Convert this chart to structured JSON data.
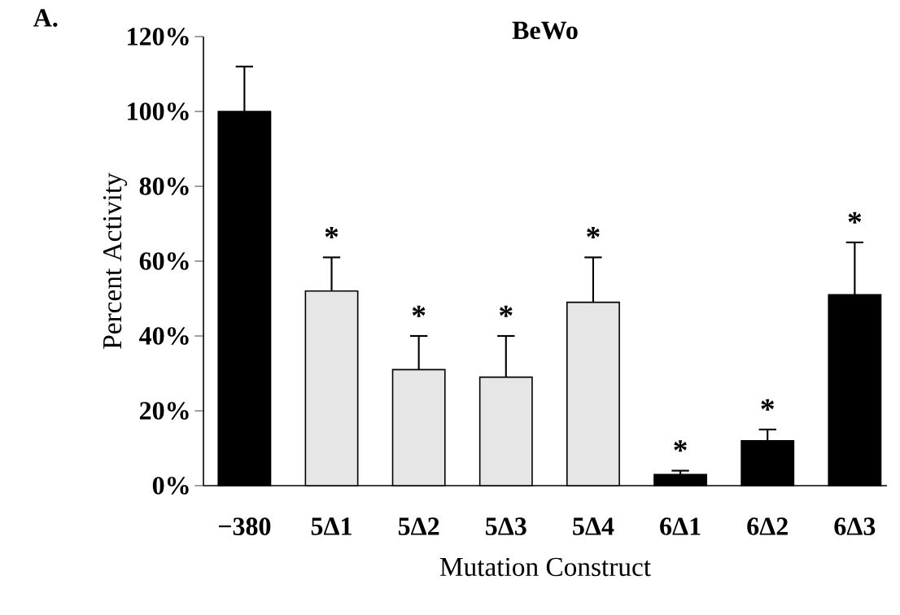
{
  "chart_data": {
    "type": "bar",
    "title": "BeWo",
    "xlabel": "Mutation Construct",
    "ylabel": "Percent Activity",
    "categories": [
      "−380",
      "5Δ1",
      "5Δ2",
      "5Δ3",
      "5Δ4",
      "6Δ1",
      "6Δ2",
      "6Δ3"
    ],
    "values": [
      100,
      52,
      31,
      29,
      49,
      3,
      12,
      51
    ],
    "errors": [
      12,
      9,
      9,
      11,
      12,
      1,
      3,
      14
    ],
    "colors": [
      "#000000",
      "#e6e6e6",
      "#e6e6e6",
      "#e6e6e6",
      "#e6e6e6",
      "#000000",
      "#000000",
      "#000000"
    ],
    "ylim": [
      0,
      120
    ],
    "yticks": [
      {
        "value": 0,
        "label": "0%"
      },
      {
        "value": 20,
        "label": "20%"
      },
      {
        "value": 40,
        "label": "40%"
      },
      {
        "value": 60,
        "label": "60%"
      },
      {
        "value": 80,
        "label": "80%"
      },
      {
        "value": 100,
        "label": "100%"
      },
      {
        "value": 120,
        "label": "120%"
      }
    ],
    "value_labels": [
      null,
      "*",
      "*",
      "*",
      "*",
      "*",
      "*",
      "*"
    ],
    "grid": false,
    "annotations": [
      "A."
    ]
  }
}
